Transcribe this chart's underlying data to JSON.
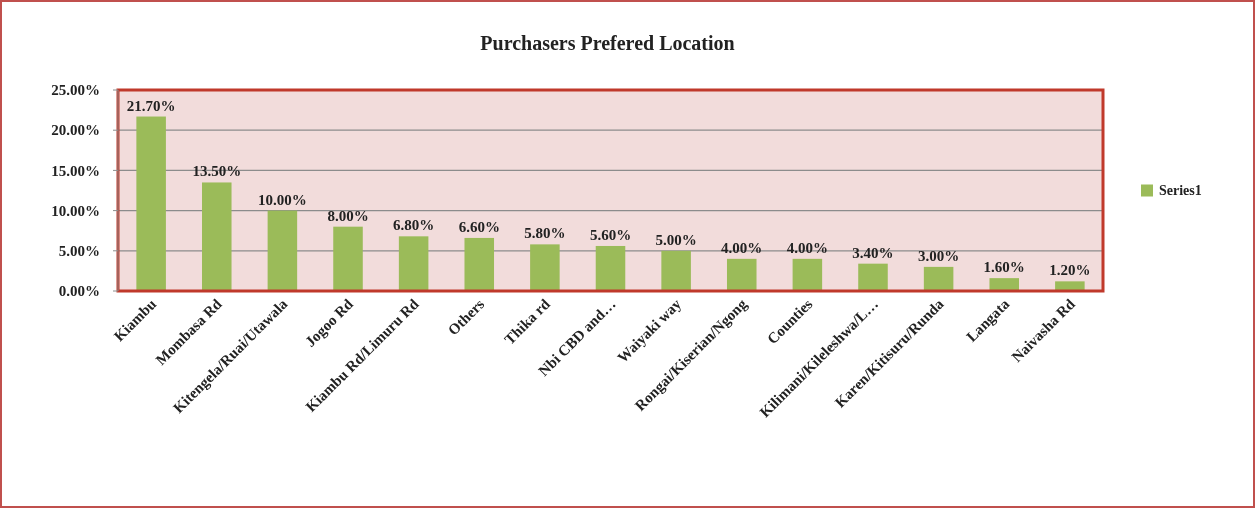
{
  "chart_data": {
    "type": "bar",
    "title": "Purchasers Prefered Location",
    "categories": [
      "Kiambu",
      "Mombasa Rd",
      "Kitengela/Ruai/Utawala",
      "Jogoo Rd",
      "Kiambu Rd/Limuru Rd",
      "Others",
      "Thika rd",
      "Nbi CBD and…",
      "Waiyaki way",
      "Rongai/Kiserian/Ngong",
      "Counties",
      "Kilimani/Kileleshwa/L…",
      "Karen/Kitisuru/Runda",
      "Langata",
      "Naivasha Rd"
    ],
    "series": [
      {
        "name": "Series1",
        "color": "#9bbb59",
        "values": [
          21.7,
          13.5,
          10,
          8,
          6.8,
          6.6,
          5.8,
          5.6,
          5,
          4,
          4,
          3.4,
          3,
          1.6,
          1.2
        ],
        "value_labels": [
          "21.70%",
          "13.50%",
          "10.00%",
          "8.00%",
          "6.80%",
          "6.60%",
          "5.80%",
          "5.60%",
          "5.00%",
          "4.00%",
          "4.00%",
          "3.40%",
          "3.00%",
          "1.60%",
          "1.20%"
        ]
      }
    ],
    "ylim": [
      0,
      25
    ],
    "yticks": [
      {
        "value": 0,
        "label": "0.00%"
      },
      {
        "value": 5,
        "label": "5.00%"
      },
      {
        "value": 10,
        "label": "10.00%"
      },
      {
        "value": 15,
        "label": "15.00%"
      },
      {
        "value": 20,
        "label": "20.00%"
      },
      {
        "value": 25,
        "label": "25.00%"
      }
    ],
    "grid": "y",
    "legend": "right"
  }
}
